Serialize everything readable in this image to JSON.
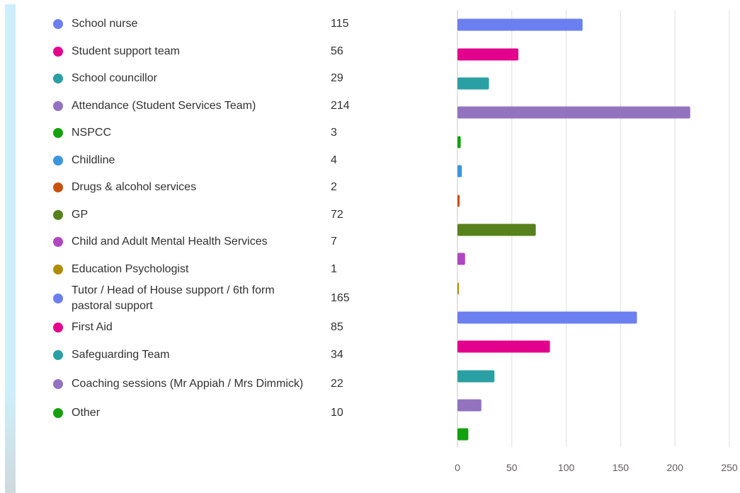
{
  "chart_data": {
    "type": "bar",
    "orientation": "horizontal",
    "categories": [
      "School nurse",
      "Student support team",
      "School councillor",
      "Attendance (Student Services Team)",
      "NSPCC",
      "Childline",
      "Drugs & alcohol services",
      "GP",
      "Child and Adult Mental Health Services",
      "Education Psychologist",
      "Tutor / Head of House support / 6th form pastoral support",
      "First Aid",
      "Safeguarding Team",
      "Coaching sessions (Mr Appiah / Mrs Dimmick)",
      "Other"
    ],
    "values": [
      115,
      56,
      29,
      214,
      3,
      4,
      2,
      72,
      7,
      1,
      165,
      85,
      34,
      22,
      10
    ],
    "colors": [
      "#6b7ff0",
      "#e3008c",
      "#2aa0a4",
      "#9373c0",
      "#13a10e",
      "#3a96dd",
      "#ca5010",
      "#57811b",
      "#b146c2",
      "#ae8c00",
      "#6b7ff0",
      "#e3008c",
      "#2aa0a4",
      "#9373c0",
      "#13a10e"
    ],
    "xlim": [
      0,
      250
    ],
    "x_ticks": [
      0,
      50,
      100,
      150,
      200,
      250
    ],
    "grid": true,
    "legend": "left"
  }
}
